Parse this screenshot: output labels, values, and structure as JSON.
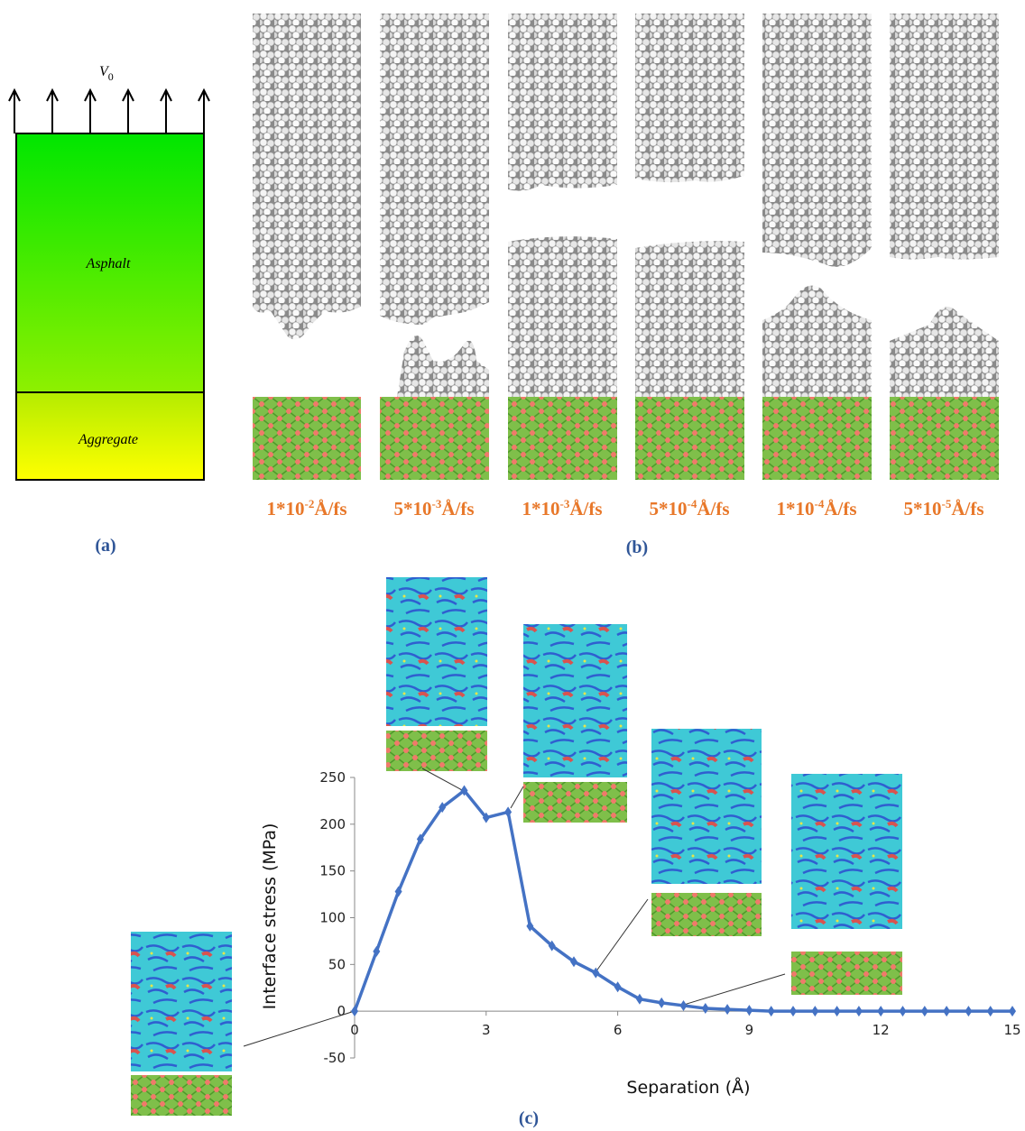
{
  "panel_a": {
    "velocity": {
      "symbol": "V",
      "subscript": "0"
    },
    "upper": "Asphalt",
    "lower": "Aggregate",
    "caption": "(a)"
  },
  "panel_b": {
    "rates": [
      {
        "mantissa": "1*10",
        "exponent": "-2",
        "unit": "Å/fs"
      },
      {
        "mantissa": "5*10",
        "exponent": "-3",
        "unit": "Å/fs"
      },
      {
        "mantissa": "1*10",
        "exponent": "-3",
        "unit": "Å/fs"
      },
      {
        "mantissa": "5*10",
        "exponent": "-4",
        "unit": "Å/fs"
      },
      {
        "mantissa": "1*10",
        "exponent": "-4",
        "unit": "Å/fs"
      },
      {
        "mantissa": "5*10",
        "exponent": "-5",
        "unit": "Å/fs"
      }
    ],
    "caption": "(b)"
  },
  "chart_data": {
    "type": "line",
    "caption": "(c)",
    "x_label": "Separation (Å)",
    "y_label": "Interface stress (MPa)",
    "x": [
      0,
      0.5,
      1,
      1.5,
      2,
      2.5,
      3,
      3.5,
      4,
      4.5,
      5,
      5.5,
      6,
      6.5,
      7,
      7.5,
      8,
      8.5,
      9,
      9.5,
      10,
      10.5,
      11,
      11.5,
      12,
      12.5,
      13,
      13.5,
      14,
      14.5,
      15
    ],
    "series": [
      {
        "color": "#4472c4",
        "values": [
          0,
          64,
          128,
          184,
          218,
          236,
          207,
          213,
          91,
          70,
          53,
          41,
          26,
          13,
          9,
          6,
          3,
          2,
          1,
          0,
          0,
          0,
          0,
          0,
          0,
          0,
          0,
          0,
          0,
          0,
          0
        ]
      }
    ],
    "xlim": [
      0,
      15
    ],
    "xticks": [
      0,
      3,
      6,
      9,
      12,
      15
    ],
    "ylim": [
      -50,
      250
    ],
    "yticks": [
      -50,
      0,
      50,
      100,
      150,
      200,
      250
    ],
    "grid": false
  }
}
